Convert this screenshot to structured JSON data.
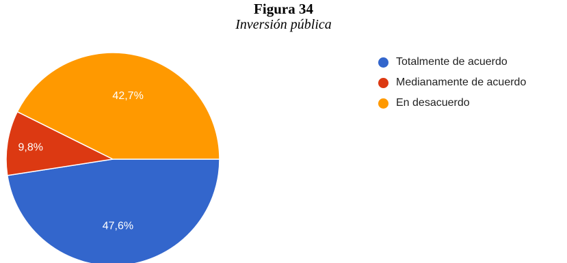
{
  "figure": {
    "title": "Figura 34",
    "subtitle": "Inversión pública"
  },
  "chart_data": {
    "type": "pie",
    "title": "Figura 34",
    "subtitle": "Inversión pública",
    "categories": [
      "Totalmente de acuerdo",
      "Medianamente de acuerdo",
      "En desacuerdo"
    ],
    "values": [
      47.6,
      9.8,
      42.7
    ],
    "labels": [
      "47,6%",
      "9,8%",
      "42,7%"
    ],
    "colors": [
      "#3366cc",
      "#dc3912",
      "#ff9900"
    ],
    "legend_position": "right"
  }
}
